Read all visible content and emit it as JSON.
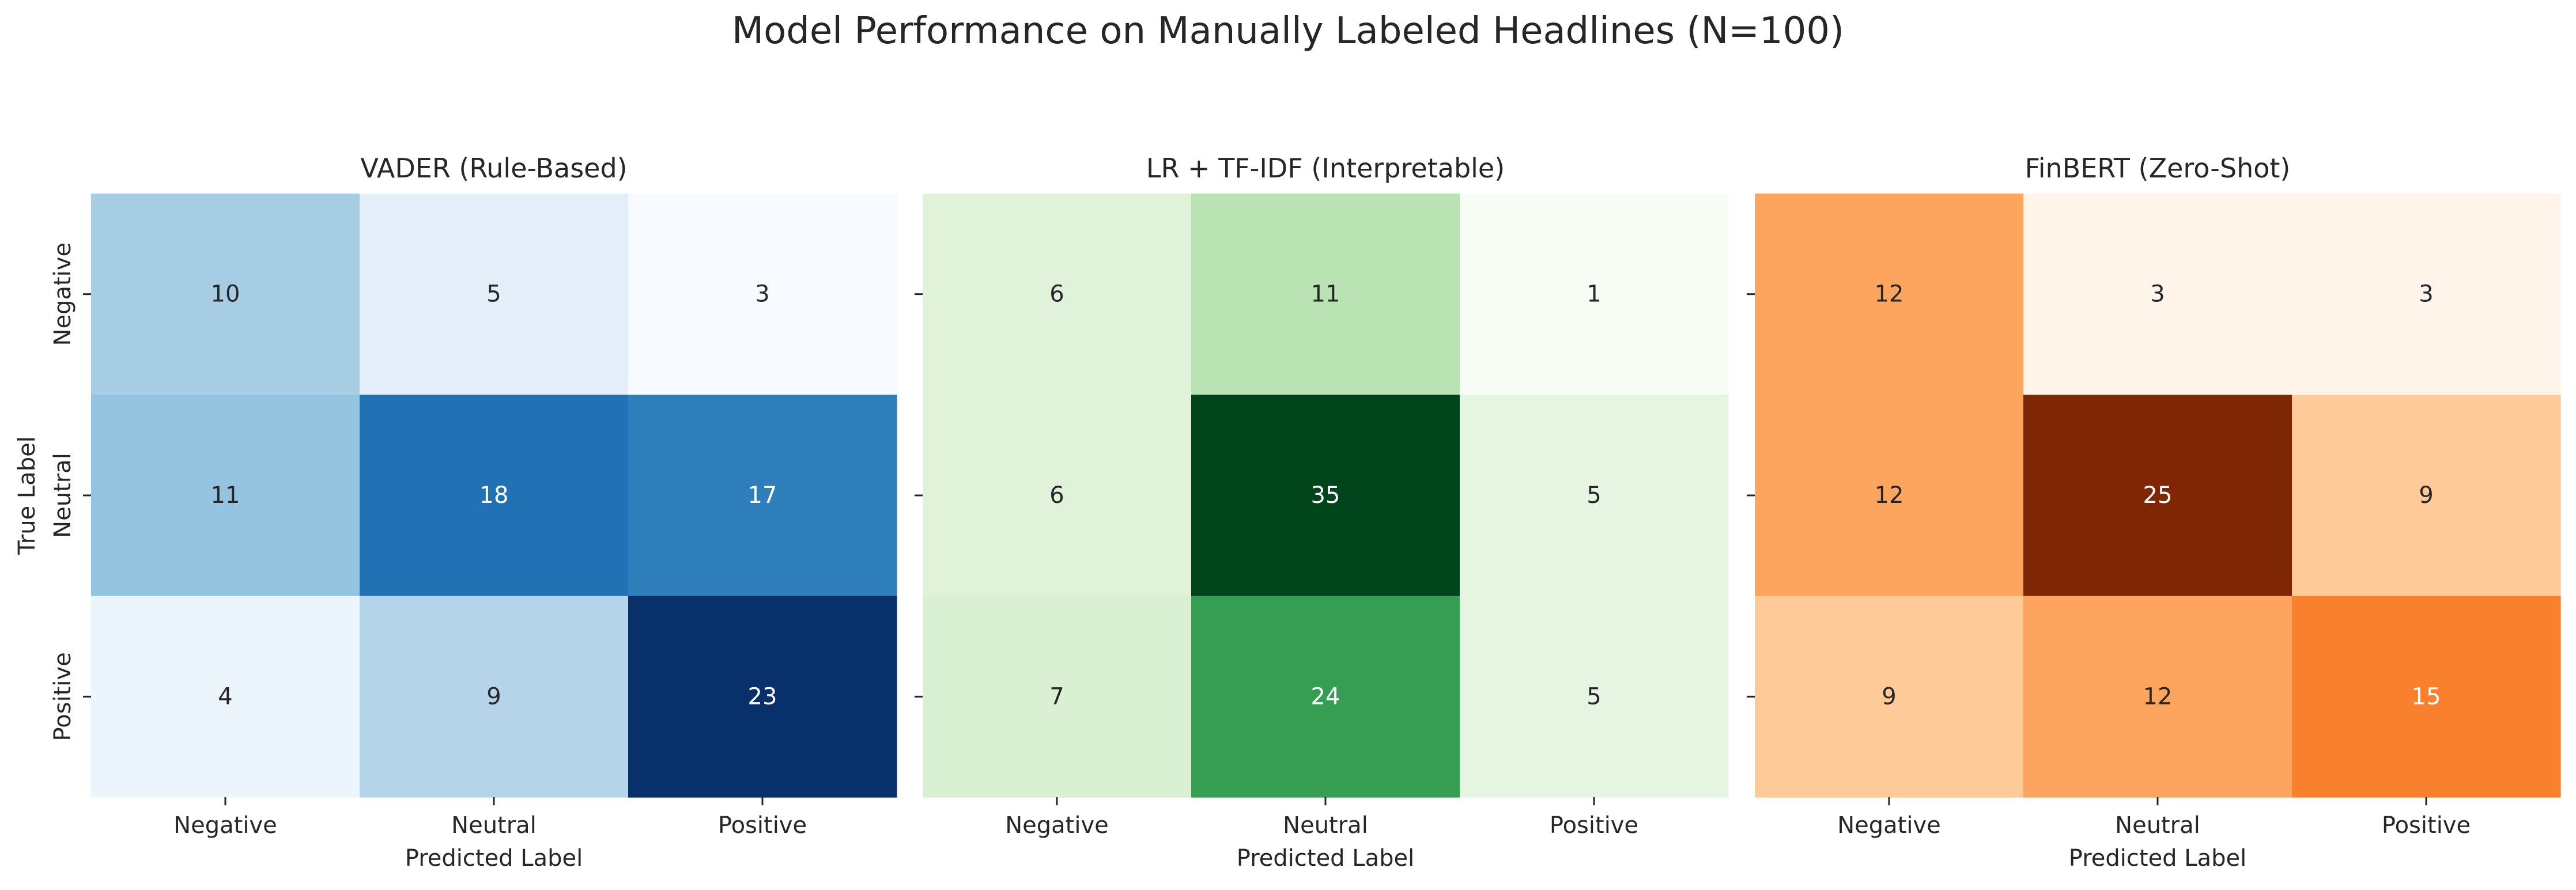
{
  "figure": {
    "title": "Model Performance on Manually Labeled Headlines (N=100)"
  },
  "chart_data": [
    {
      "type": "heatmap",
      "title": "VADER (Rule-Based)",
      "xlabel": "Predicted Label",
      "ylabel": "True Label",
      "x_categories": [
        "Negative",
        "Neutral",
        "Positive"
      ],
      "y_categories": [
        "Negative",
        "Neutral",
        "Positive"
      ],
      "values": [
        [
          10,
          5,
          3
        ],
        [
          11,
          18,
          17
        ],
        [
          4,
          9,
          23
        ]
      ],
      "colormap": "Blues",
      "colors": [
        "#f7fbff",
        "#deebf7",
        "#c6dbef",
        "#9ecae1",
        "#6baed6",
        "#4292c6",
        "#2171b5",
        "#08519c",
        "#08306b"
      ],
      "colorbar": false,
      "annotated": true
    },
    {
      "type": "heatmap",
      "title": "LR + TF-IDF (Interpretable)",
      "xlabel": "Predicted Label",
      "ylabel": "",
      "x_categories": [
        "Negative",
        "Neutral",
        "Positive"
      ],
      "y_categories": [
        "Negative",
        "Neutral",
        "Positive"
      ],
      "values": [
        [
          6,
          11,
          1
        ],
        [
          6,
          35,
          5
        ],
        [
          7,
          24,
          5
        ]
      ],
      "colormap": "Greens",
      "colors": [
        "#f7fcf5",
        "#e5f5e0",
        "#c7e9c0",
        "#a1d99b",
        "#74c476",
        "#41ab5d",
        "#238b45",
        "#006d2c",
        "#00441b"
      ],
      "colorbar": false,
      "annotated": true
    },
    {
      "type": "heatmap",
      "title": "FinBERT (Zero-Shot)",
      "xlabel": "Predicted Label",
      "ylabel": "",
      "x_categories": [
        "Negative",
        "Neutral",
        "Positive"
      ],
      "y_categories": [
        "Negative",
        "Neutral",
        "Positive"
      ],
      "values": [
        [
          12,
          3,
          3
        ],
        [
          12,
          25,
          9
        ],
        [
          9,
          12,
          15
        ]
      ],
      "colormap": "Oranges",
      "colors": [
        "#fff5eb",
        "#fee6ce",
        "#fdd0a2",
        "#fdae6b",
        "#fd8d3c",
        "#f16913",
        "#d94801",
        "#a63603",
        "#7f2704"
      ],
      "colorbar": false,
      "annotated": true
    }
  ]
}
